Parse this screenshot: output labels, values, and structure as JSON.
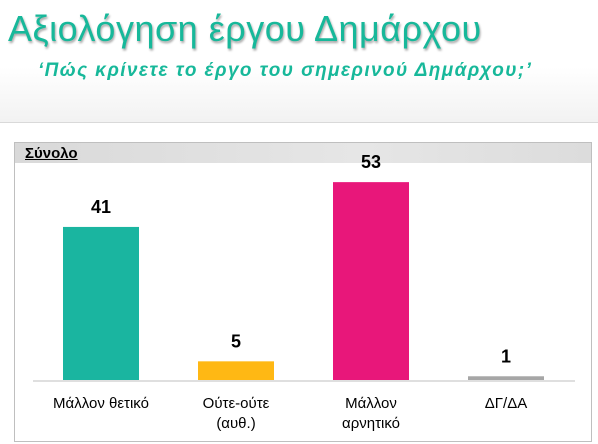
{
  "header": {
    "title": "Αξιολόγηση έργου Δημάρχου",
    "subtitle": "‘Πώς κρίνετε το έργο του σημερινού Δημάρχου;’"
  },
  "panel": {
    "label": "Σύνολο"
  },
  "chart_data": {
    "type": "bar",
    "categories": [
      [
        "Μάλλον θετικό"
      ],
      [
        "Ούτε-ούτε",
        "(αυθ.)"
      ],
      [
        "Μάλλον",
        "αρνητικό"
      ],
      [
        "ΔΓ/ΔΑ"
      ]
    ],
    "values": [
      41,
      5,
      53,
      1
    ],
    "colors": [
      "#1ab5a0",
      "#ffb814",
      "#e8177a",
      "#a6a6a6"
    ],
    "ylim": [
      0,
      60
    ],
    "grid": false,
    "legend": "none"
  }
}
